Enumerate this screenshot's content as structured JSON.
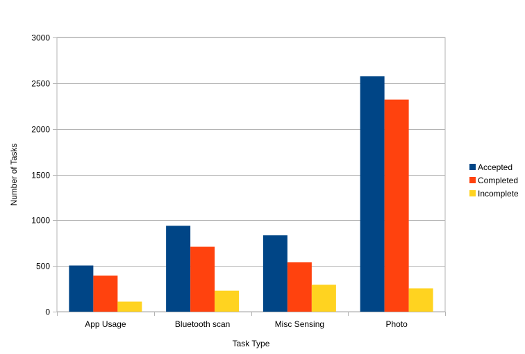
{
  "chart_data": {
    "type": "bar",
    "title": "",
    "xlabel": "Task Type",
    "ylabel": "Number of Tasks",
    "ylim": [
      0,
      3000
    ],
    "yticks": [
      0,
      500,
      1000,
      1500,
      2000,
      2500,
      3000
    ],
    "grid": true,
    "legend_position": "right",
    "categories": [
      "App Usage",
      "Bluetooth scan",
      "Misc Sensing",
      "Photo"
    ],
    "series": [
      {
        "name": "Accepted",
        "color": "#004586",
        "values": [
          505,
          940,
          835,
          2575
        ]
      },
      {
        "name": "Completed",
        "color": "#ff420e",
        "values": [
          395,
          710,
          540,
          2320
        ]
      },
      {
        "name": "Incomplete",
        "color": "#ffd320",
        "values": [
          110,
          230,
          295,
          255
        ]
      }
    ]
  }
}
